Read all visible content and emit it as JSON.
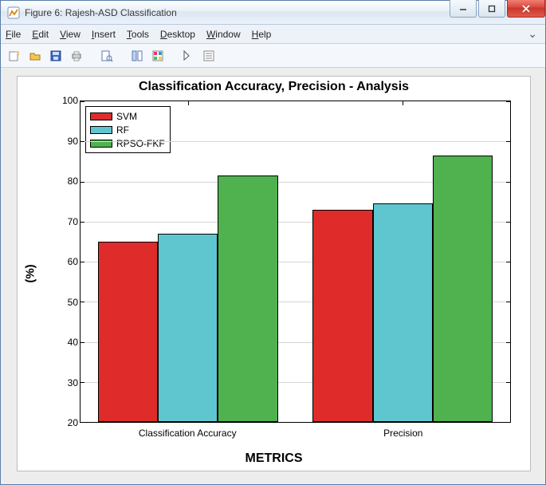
{
  "window": {
    "title": "Figure 6: Rajesh-ASD Classification"
  },
  "menu": {
    "items": [
      {
        "label": "File",
        "u": "F"
      },
      {
        "label": "Edit",
        "u": "E"
      },
      {
        "label": "View",
        "u": "V"
      },
      {
        "label": "Insert",
        "u": "I"
      },
      {
        "label": "Tools",
        "u": "T"
      },
      {
        "label": "Desktop",
        "u": "D"
      },
      {
        "label": "Window",
        "u": "W"
      },
      {
        "label": "Help",
        "u": "H"
      }
    ]
  },
  "chart": {
    "type": "bar",
    "title": "Classification Accuracy, Precision - Analysis",
    "xlabel": "METRICS",
    "ylabel": "(%)",
    "ylim": [
      20,
      100
    ],
    "ytick_step": 10,
    "categories": [
      "Classification Accuracy",
      "Precision"
    ],
    "series": [
      {
        "name": "SVM",
        "color": "#e02b2b",
        "values": [
          65,
          73
        ]
      },
      {
        "name": "RF",
        "color": "#5fc6cf",
        "values": [
          67,
          74.5
        ]
      },
      {
        "name": "RPSO-FKF",
        "color": "#4fb24f",
        "values": [
          81.5,
          86.5
        ]
      }
    ],
    "grid_color": "#d6d6d6",
    "background_color": "#ffffff",
    "bar_border": "#000000",
    "bar_group_width": 0.42,
    "legend_position": "top-left"
  }
}
